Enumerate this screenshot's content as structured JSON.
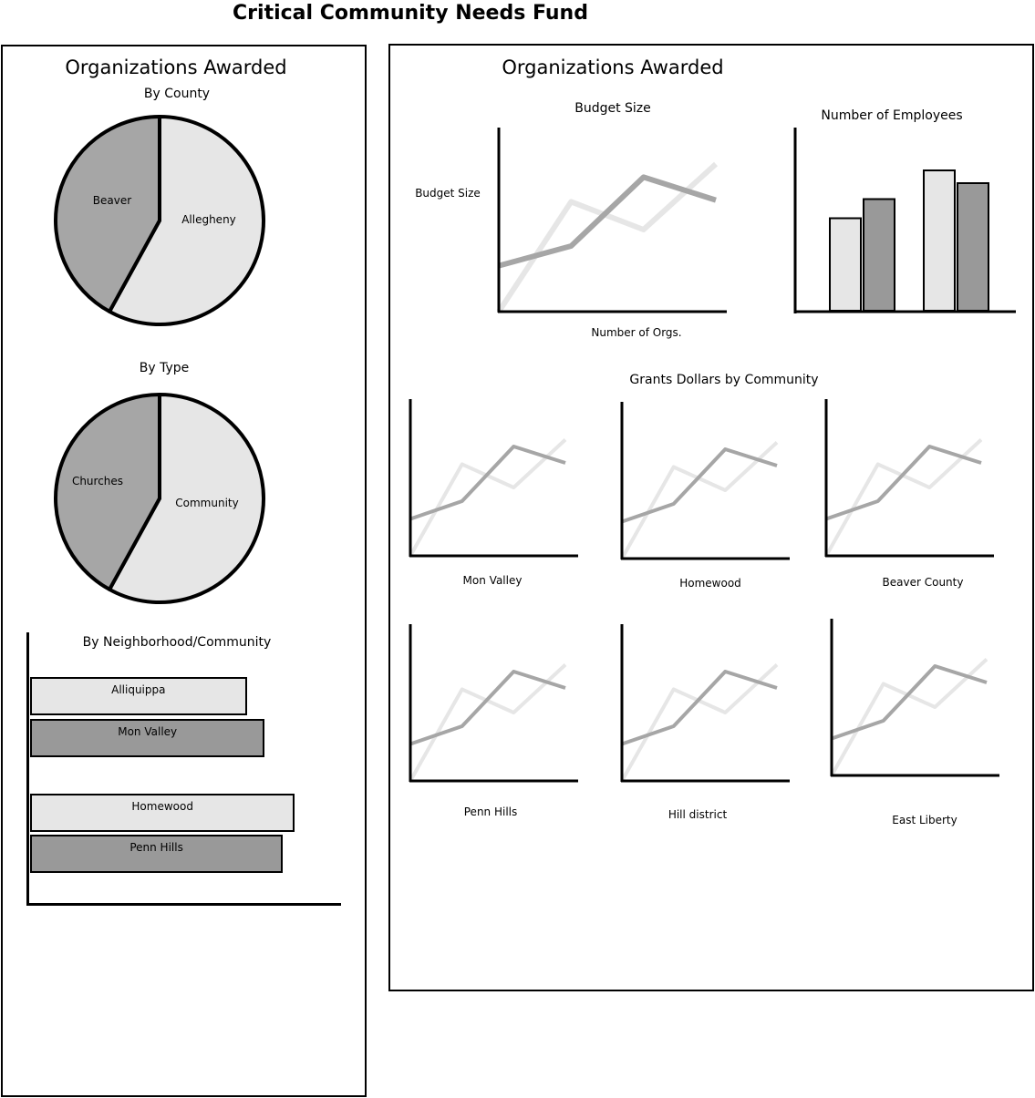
{
  "page": {
    "title": "Critical Community Needs Fund"
  },
  "colors": {
    "light": "#e6e6e6",
    "dark": "#a6a6a6",
    "medium": "#999999",
    "stroke": "#000000"
  },
  "left_panel": {
    "heading": "Organizations Awarded",
    "by_county": {
      "title": "By County"
    },
    "by_type": {
      "title": "By Type"
    },
    "by_neighborhood": {
      "title": "By Neighborhood/Community"
    }
  },
  "right_panel": {
    "heading": "Organizations Awarded",
    "budget": {
      "title": "Budget Size",
      "ylabel": "Budget Size",
      "xlabel": "Number of Orgs."
    },
    "employees": {
      "title": "Number of Employees"
    },
    "grants": {
      "title": "Grants Dollars by Community",
      "labels": [
        "Mon Valley",
        "Homewood",
        "Beaver County",
        "Penn Hills",
        "Hill district",
        "East Liberty"
      ]
    }
  },
  "chart_data": [
    {
      "id": "by-county",
      "type": "pie",
      "title": "By County",
      "categories": [
        "Allegheny",
        "Beaver"
      ],
      "values": [
        58,
        42
      ]
    },
    {
      "id": "by-type",
      "type": "pie",
      "title": "By Type",
      "categories": [
        "Community",
        "Churches"
      ],
      "values": [
        58,
        42
      ]
    },
    {
      "id": "by-neighborhood",
      "type": "bar",
      "orientation": "horizontal",
      "title": "By Neighborhood/Community",
      "categories": [
        "Alliquippa",
        "Mon Valley",
        "Homewood",
        "Penn Hills"
      ],
      "values": [
        72,
        78,
        88,
        84
      ],
      "xlim": [
        0,
        100
      ]
    },
    {
      "id": "budget-size",
      "type": "line",
      "title": "Budget Size",
      "xlabel": "Number of Orgs.",
      "ylabel": "Budget Size",
      "x": [
        0,
        1,
        2,
        3
      ],
      "xlim": [
        0,
        3
      ],
      "ylim": [
        0,
        100
      ],
      "series": [
        {
          "values": [
            0,
            67,
            50,
            90
          ]
        },
        {
          "values": [
            28,
            40,
            82,
            68
          ]
        }
      ]
    },
    {
      "id": "number-of-employees",
      "type": "bar",
      "title": "Number of Employees",
      "ylim": [
        0,
        100
      ],
      "groups": [
        {
          "values": [
            58,
            70
          ]
        },
        {
          "values": [
            88,
            80
          ]
        }
      ]
    },
    {
      "id": "grants-by-community",
      "type": "line",
      "title": "Grants Dollars by Community",
      "panels": [
        "Mon Valley",
        "Homewood",
        "Beaver County",
        "Penn Hills",
        "Hill district",
        "East Liberty"
      ],
      "x": [
        0,
        1,
        2,
        3
      ],
      "xlim": [
        0,
        3
      ],
      "ylim": [
        0,
        100
      ],
      "series": [
        {
          "values": [
            0,
            67,
            50,
            85
          ]
        },
        {
          "values": [
            27,
            40,
            80,
            68
          ]
        }
      ]
    }
  ]
}
